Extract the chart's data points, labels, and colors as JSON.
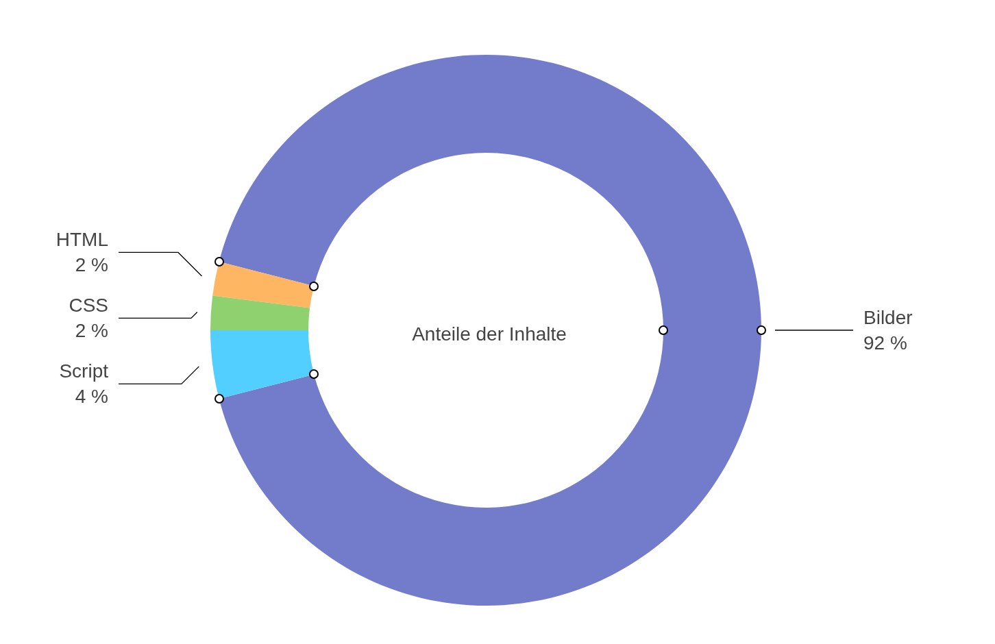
{
  "chart_data": {
    "type": "donut",
    "title": "Anteile der Inhalte",
    "categories": [
      "Bilder",
      "HTML",
      "CSS",
      "Script"
    ],
    "values": [
      92,
      2,
      2,
      4
    ],
    "colors": [
      "#737bcb",
      "#ffb662",
      "#8fd16f",
      "#52cffe"
    ],
    "value_labels": [
      "92 %",
      "2 %",
      "2 %",
      "4 %"
    ]
  }
}
